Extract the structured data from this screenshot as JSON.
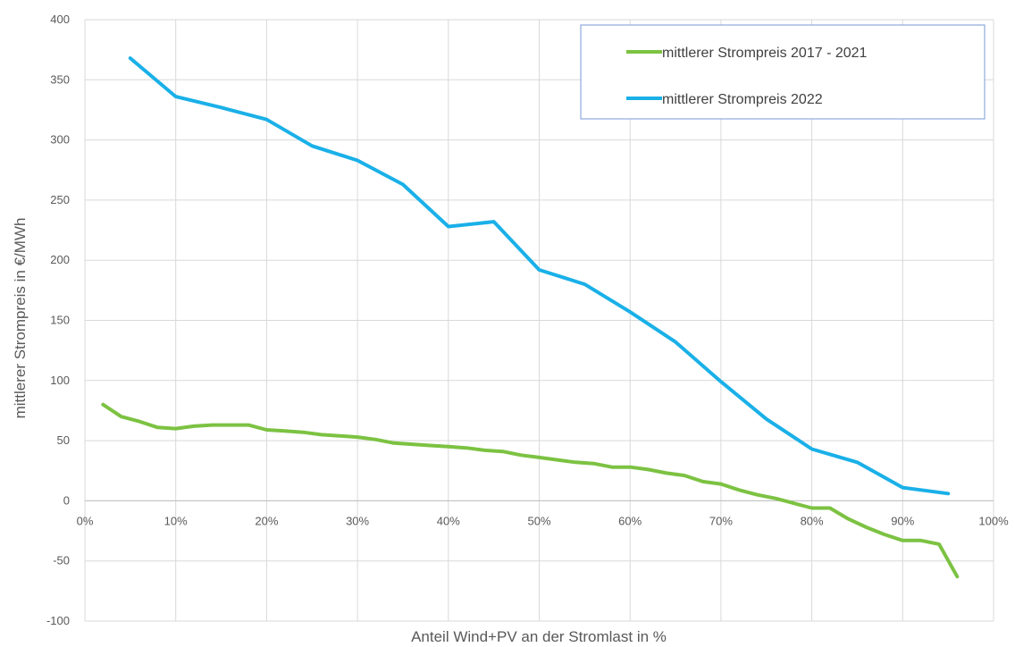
{
  "chart_data": {
    "type": "line",
    "xlabel": "Anteil Wind+PV an der Stromlast in %",
    "ylabel": "mittlerer Strompreis in €/MWh",
    "xlim": [
      0,
      100
    ],
    "ylim": [
      -100,
      400
    ],
    "x_ticks": [
      "0%",
      "10%",
      "20%",
      "30%",
      "40%",
      "50%",
      "60%",
      "70%",
      "80%",
      "90%",
      "100%"
    ],
    "y_ticks": [
      "400",
      "350",
      "300",
      "250",
      "200",
      "150",
      "100",
      "50",
      "0",
      "-50",
      "-100"
    ],
    "grid": true,
    "legend_position": "top-right",
    "series": [
      {
        "name": "mittlerer Strompreis 2017 - 2021",
        "color": "#7cc242",
        "x": [
          2,
          4,
          6,
          8,
          10,
          12,
          14,
          16,
          18,
          20,
          22,
          24,
          26,
          28,
          30,
          32,
          34,
          36,
          38,
          40,
          42,
          44,
          46,
          48,
          50,
          52,
          54,
          56,
          58,
          60,
          62,
          64,
          66,
          68,
          70,
          72,
          74,
          76,
          78,
          80,
          82,
          84,
          86,
          88,
          90,
          92,
          94,
          96
        ],
        "values": [
          80,
          70,
          66,
          61,
          60,
          62,
          63,
          63,
          63,
          59,
          58,
          57,
          55,
          54,
          53,
          51,
          48,
          47,
          46,
          45,
          44,
          42,
          41,
          38,
          36,
          34,
          32,
          31,
          28,
          28,
          26,
          23,
          21,
          16,
          14,
          9,
          5,
          2,
          -2,
          -6,
          -6,
          -15,
          -22,
          -28,
          -33,
          -33,
          -36,
          -63
        ]
      },
      {
        "name": "mittlerer Strompreis 2022",
        "color": "#1ab0e8",
        "x": [
          5,
          10,
          15,
          20,
          25,
          30,
          35,
          40,
          45,
          50,
          55,
          60,
          65,
          70,
          75,
          80,
          85,
          90,
          95
        ],
        "values": [
          368,
          336,
          327,
          317,
          295,
          283,
          263,
          228,
          232,
          192,
          180,
          157,
          132,
          99,
          68,
          43,
          32,
          11,
          6
        ]
      }
    ]
  }
}
